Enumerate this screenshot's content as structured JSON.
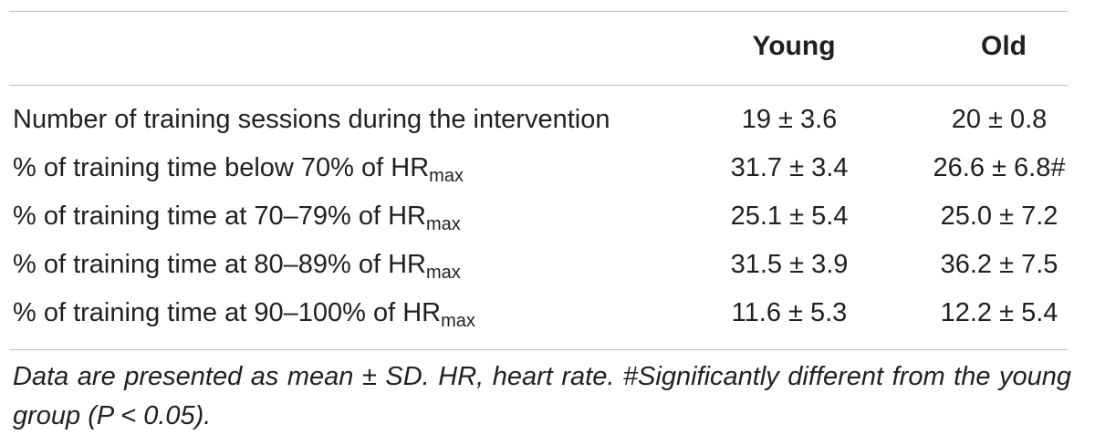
{
  "table": {
    "headers": {
      "young": "Young",
      "old": "Old"
    },
    "rows": [
      {
        "label": "Number of training sessions during the intervention",
        "label_sub": "",
        "young": "19 ± 3.6",
        "old": "20 ± 0.8"
      },
      {
        "label": "% of training time below 70% of HR",
        "label_sub": "max",
        "young": "31.7 ± 3.4",
        "old": "26.6 ± 6.8#"
      },
      {
        "label": "% of training time at 70–79% of HR",
        "label_sub": "max",
        "young": "25.1 ± 5.4",
        "old": "25.0 ± 7.2"
      },
      {
        "label": "% of training time at 80–89% of HR",
        "label_sub": "max",
        "young": "31.5 ± 3.9",
        "old": "36.2 ± 7.5"
      },
      {
        "label": "% of training time at 90–100% of HR",
        "label_sub": "max",
        "young": "11.6 ± 5.3",
        "old": "12.2 ± 5.4"
      }
    ],
    "footnote": "Data are presented as mean ± SD. HR, heart rate. #Significantly different from the young group (P < 0.05)."
  }
}
